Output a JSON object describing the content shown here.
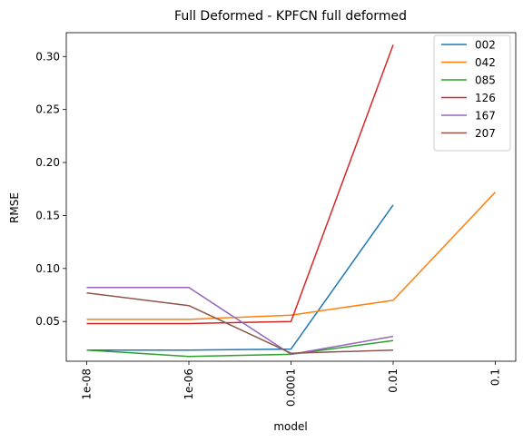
{
  "chart_data": {
    "type": "line",
    "title": "Full Deformed - KPFCN full deformed",
    "xlabel": "model",
    "ylabel": "RMSE",
    "categories": [
      "1e-08",
      "1e-06",
      "0.0001",
      "0.01",
      "0.1"
    ],
    "ylim": [
      0.0125,
      0.3225
    ],
    "yticks": [
      0.05,
      0.1,
      0.15,
      0.2,
      0.25,
      0.3
    ],
    "ytick_labels": [
      "0.05",
      "0.10",
      "0.15",
      "0.20",
      "0.25",
      "0.30"
    ],
    "grid": false,
    "legend_position": "top-right",
    "series": [
      {
        "name": "002",
        "color": "#1f77b4",
        "values": [
          0.023,
          0.023,
          0.024,
          0.16,
          null
        ]
      },
      {
        "name": "042",
        "color": "#ff7f0e",
        "values": [
          0.052,
          0.052,
          0.056,
          0.07,
          0.172
        ]
      },
      {
        "name": "085",
        "color": "#2ca02c",
        "values": [
          0.023,
          0.017,
          0.019,
          0.032,
          null
        ]
      },
      {
        "name": "126",
        "color": "#d62728",
        "values": [
          0.048,
          0.048,
          0.05,
          0.311,
          null
        ]
      },
      {
        "name": "167",
        "color": "#9467bd",
        "values": [
          0.082,
          0.082,
          0.019,
          0.036,
          null
        ]
      },
      {
        "name": "207",
        "color": "#8c564b",
        "values": [
          0.077,
          0.065,
          0.02,
          0.023,
          null
        ]
      }
    ]
  }
}
